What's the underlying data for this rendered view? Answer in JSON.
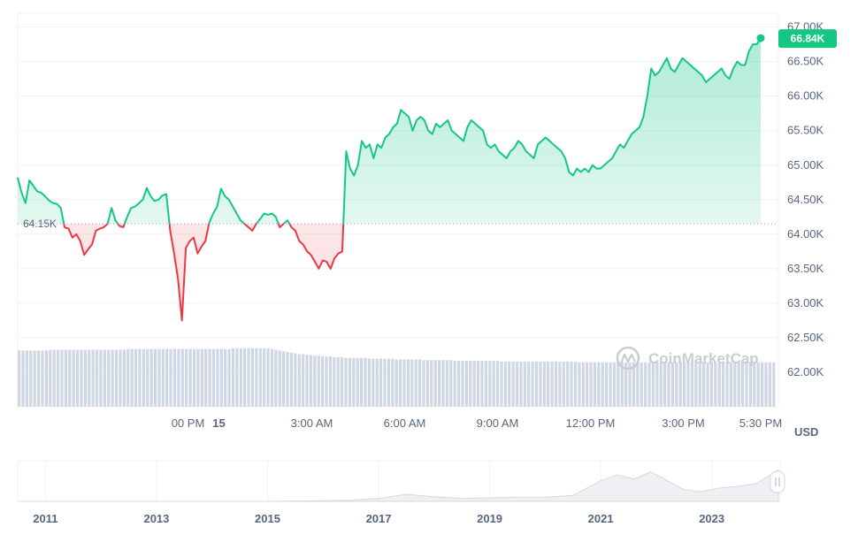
{
  "watermark": "CoinMarketCap",
  "unit_label": "USD",
  "colors": {
    "up": "#16c784",
    "down": "#ea3943",
    "grid": "#eff2f5",
    "text": "#58667e",
    "volume": "#cfd6e4"
  },
  "chart_data": [
    {
      "type": "line",
      "title": "",
      "y_unit": "USD",
      "ylim": [
        61500,
        67200
      ],
      "y_ticks": [
        {
          "value": 62000,
          "label": "62.00K"
        },
        {
          "value": 62500,
          "label": "62.50K"
        },
        {
          "value": 63000,
          "label": "63.00K"
        },
        {
          "value": 63500,
          "label": "63.50K"
        },
        {
          "value": 64000,
          "label": "64.00K"
        },
        {
          "value": 64500,
          "label": "64.50K"
        },
        {
          "value": 65000,
          "label": "65.00K"
        },
        {
          "value": 65500,
          "label": "65.50K"
        },
        {
          "value": 66000,
          "label": "66.00K"
        },
        {
          "value": 66500,
          "label": "66.50K"
        },
        {
          "value": 67000,
          "label": "67.00K"
        }
      ],
      "x_time_range": [
        "14 17:30",
        "15 17:30"
      ],
      "x_ticks": [
        {
          "time": "14 23:00",
          "label": "00 PM",
          "bold": false
        },
        {
          "time": "15 00:00",
          "label": "15",
          "bold": true
        },
        {
          "time": "15 03:00",
          "label": "3:00 AM",
          "bold": false
        },
        {
          "time": "15 06:00",
          "label": "6:00 AM",
          "bold": false
        },
        {
          "time": "15 09:00",
          "label": "9:00 AM",
          "bold": false
        },
        {
          "time": "15 12:00",
          "label": "12:00 PM",
          "bold": false
        },
        {
          "time": "15 15:00",
          "label": "3:00 PM",
          "bold": false
        },
        {
          "time": "15 17:30",
          "label": "5:30 PM",
          "bold": false
        }
      ],
      "reference": {
        "value": 64150,
        "label": "64.15K"
      },
      "current": {
        "value": 66840,
        "label": "66.84K"
      },
      "grid": true,
      "series": [
        {
          "name": "",
          "values": [
            64820,
            64600,
            64450,
            64780,
            64700,
            64620,
            64600,
            64550,
            64490,
            64450,
            64440,
            64380,
            64100,
            64080,
            63950,
            64000,
            63900,
            63700,
            63780,
            63850,
            64050,
            64080,
            64100,
            64150,
            64380,
            64200,
            64120,
            64100,
            64250,
            64380,
            64400,
            64450,
            64500,
            64670,
            64550,
            64480,
            64500,
            64560,
            64580,
            64050,
            63720,
            63350,
            62750,
            63800,
            63900,
            63950,
            63720,
            63820,
            63900,
            64170,
            64300,
            64400,
            64660,
            64550,
            64500,
            64400,
            64300,
            64200,
            64150,
            64100,
            64050,
            64150,
            64220,
            64300,
            64280,
            64300,
            64250,
            64100,
            64150,
            64200,
            64100,
            64050,
            63900,
            63850,
            63750,
            63700,
            63600,
            63500,
            63620,
            63600,
            63500,
            63650,
            63720,
            63750,
            65200,
            64950,
            64850,
            65000,
            65350,
            65250,
            65300,
            65100,
            65300,
            65250,
            65400,
            65450,
            65550,
            65600,
            65800,
            65750,
            65700,
            65500,
            65650,
            65700,
            65650,
            65500,
            65450,
            65600,
            65550,
            65600,
            65650,
            65500,
            65450,
            65400,
            65350,
            65550,
            65650,
            65600,
            65550,
            65500,
            65300,
            65250,
            65300,
            65200,
            65150,
            65100,
            65200,
            65250,
            65350,
            65300,
            65200,
            65150,
            65100,
            65300,
            65350,
            65400,
            65350,
            65300,
            65250,
            65200,
            65100,
            64900,
            64850,
            64950,
            64900,
            64950,
            64900,
            65000,
            64950,
            64950,
            65000,
            65050,
            65100,
            65200,
            65300,
            65250,
            65350,
            65450,
            65500,
            65550,
            65700,
            66000,
            66400,
            66300,
            66350,
            66450,
            66550,
            66400,
            66350,
            66450,
            66550,
            66500,
            66450,
            66400,
            66350,
            66300,
            66200,
            66250,
            66300,
            66350,
            66400,
            66300,
            66250,
            66400,
            66500,
            66450,
            66450,
            66650,
            66750,
            66750,
            66840
          ]
        },
        {
          "name": "Volume",
          "values": [
            76,
            76,
            76,
            76,
            76,
            76,
            76,
            76,
            77,
            77,
            77,
            77,
            77,
            77,
            77,
            77,
            77,
            77,
            77,
            77,
            77,
            77,
            77,
            77,
            77,
            77,
            77,
            77,
            78,
            78,
            78,
            78,
            78,
            78,
            78,
            78,
            78,
            78,
            78,
            78,
            78,
            78,
            78,
            78,
            78,
            78,
            78,
            78,
            78,
            78,
            78,
            78,
            78,
            78,
            78,
            79,
            79,
            79,
            79,
            79,
            79,
            79,
            79,
            79,
            79,
            78,
            77,
            76,
            75,
            74,
            73,
            72,
            71,
            71,
            70,
            70,
            69,
            69,
            68,
            68,
            68,
            67,
            67,
            67,
            66,
            66,
            66,
            66,
            66,
            66,
            65,
            65,
            65,
            65,
            65,
            65,
            65,
            64,
            64,
            64,
            64,
            64,
            64,
            64,
            63,
            63,
            63,
            63,
            63,
            63,
            63,
            63,
            62,
            62,
            62,
            62,
            62,
            62,
            62,
            62,
            62,
            62,
            62,
            62,
            61,
            61,
            61,
            61,
            61,
            61,
            61,
            61,
            61,
            61,
            61,
            61,
            61,
            61,
            61,
            61,
            61,
            61,
            61,
            61,
            60,
            60,
            60,
            60,
            60,
            60,
            60,
            60,
            60,
            60,
            60,
            60,
            60,
            60,
            60,
            60,
            60,
            60,
            60,
            60,
            60,
            60,
            60,
            60,
            60,
            60,
            60,
            60,
            60,
            60,
            60,
            60,
            60,
            60,
            60,
            60,
            60,
            60,
            60,
            60,
            60,
            60,
            60,
            60,
            60,
            60,
            60,
            60,
            60,
            60,
            60
          ]
        }
      ]
    },
    {
      "type": "area",
      "title": "",
      "x_ticks": [
        "2011",
        "2013",
        "2015",
        "2017",
        "2019",
        "2021",
        "2023"
      ],
      "x_range": [
        2010.5,
        2024.2
      ],
      "series": [
        {
          "name": "",
          "x": [
            2010.5,
            2012,
            2013,
            2014,
            2015,
            2016,
            2016.5,
            2017,
            2017.5,
            2018,
            2018.5,
            2019,
            2019.5,
            2020,
            2020.5,
            2021,
            2021.3,
            2021.6,
            2021.9,
            2022.2,
            2022.5,
            2022.8,
            2023.1,
            2023.5,
            2023.8,
            2024.2
          ],
          "values": [
            0,
            0,
            0,
            0,
            0,
            0.1,
            0.2,
            0.5,
            1.2,
            0.8,
            0.5,
            0.6,
            0.7,
            0.7,
            1.0,
            3.5,
            4.5,
            3.8,
            5.0,
            3.5,
            2.0,
            1.6,
            2.2,
            2.6,
            3.0,
            5.3
          ]
        }
      ]
    }
  ]
}
